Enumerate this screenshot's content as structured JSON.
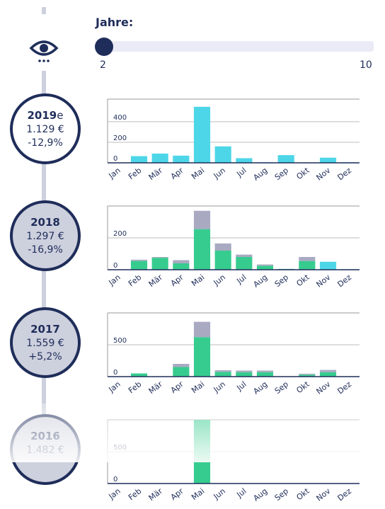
{
  "slider": {
    "label": "Jahre:",
    "min_label": "2",
    "max_label": "10",
    "value": 2
  },
  "colors": {
    "navy": "#1f2d5a",
    "cyan": "#4dd6e8",
    "green": "#37cc8f",
    "grey": "#a9aac2",
    "timeline": "#cdd0dd",
    "circle_filled": "#cdd0dd"
  },
  "icons": {
    "view": "eye-icon",
    "more": "ellipsis-icon"
  },
  "years": [
    {
      "year": "2019",
      "suffix": "e",
      "amount": "1.129 €",
      "change": "-12,9%",
      "filled": false
    },
    {
      "year": "2018",
      "suffix": "",
      "amount": "1.297 €",
      "change": "-16,9%",
      "filled": true
    },
    {
      "year": "2017",
      "suffix": "",
      "amount": "1.559 €",
      "change": "+5,2%",
      "filled": true
    },
    {
      "year": "2016",
      "suffix": "",
      "amount": "1.482 €",
      "change": "",
      "filled": true
    }
  ],
  "chart_data": [
    {
      "type": "bar",
      "title": "2019e",
      "categories": [
        "Jan",
        "Feb",
        "Mär",
        "Apr",
        "Mai",
        "Jun",
        "Jul",
        "Aug",
        "Sep",
        "Okt",
        "Nov",
        "Dez"
      ],
      "yticks": [
        0,
        200,
        400
      ],
      "ylim": [
        0,
        620
      ],
      "series": [
        {
          "color": "#4dd6e8",
          "values": [
            0,
            65,
            90,
            70,
            545,
            160,
            45,
            5,
            75,
            0,
            50,
            5
          ]
        }
      ]
    },
    {
      "type": "bar",
      "title": "2018",
      "stacked": true,
      "categories": [
        "Jan",
        "Feb",
        "Mär",
        "Apr",
        "Mai",
        "Jun",
        "Jul",
        "Aug",
        "Sep",
        "Okt",
        "Nov",
        "Dez"
      ],
      "yticks": [
        0,
        200
      ],
      "ylim": [
        0,
        400
      ],
      "series": [
        {
          "color": "#37cc8f",
          "values": [
            0,
            55,
            75,
            40,
            255,
            120,
            80,
            25,
            5,
            55,
            0,
            3
          ]
        },
        {
          "color": "#4dd6e8",
          "values": [
            0,
            0,
            0,
            0,
            0,
            0,
            0,
            0,
            0,
            0,
            50,
            0
          ]
        },
        {
          "color": "#a9aac2",
          "values": [
            0,
            8,
            5,
            20,
            115,
            45,
            15,
            8,
            0,
            25,
            0,
            0
          ]
        }
      ]
    },
    {
      "type": "bar",
      "title": "2017",
      "stacked": true,
      "categories": [
        "Jan",
        "Feb",
        "Mär",
        "Apr",
        "Mai",
        "Jun",
        "Jul",
        "Aug",
        "Sep",
        "Okt",
        "Nov",
        "Dez"
      ],
      "yticks": [
        0,
        500
      ],
      "ylim": [
        0,
        1000
      ],
      "series": [
        {
          "color": "#37cc8f",
          "values": [
            0,
            50,
            0,
            150,
            620,
            75,
            70,
            70,
            0,
            30,
            70,
            5
          ]
        },
        {
          "color": "#a9aac2",
          "values": [
            0,
            0,
            0,
            50,
            240,
            25,
            25,
            25,
            0,
            15,
            35,
            0
          ]
        }
      ]
    },
    {
      "type": "bar",
      "title": "2016",
      "stacked": true,
      "categories": [
        "Jan",
        "Feb",
        "Mär",
        "Apr",
        "Mai",
        "Jun",
        "Jul",
        "Aug",
        "Sep",
        "Okt",
        "Nov",
        "Dez"
      ],
      "yticks": [
        0,
        500
      ],
      "ylim": [
        0,
        1000
      ],
      "series": [
        {
          "color": "#37cc8f",
          "values": [
            0,
            0,
            0,
            0,
            1000,
            0,
            0,
            0,
            0,
            0,
            0,
            0
          ]
        }
      ]
    }
  ]
}
